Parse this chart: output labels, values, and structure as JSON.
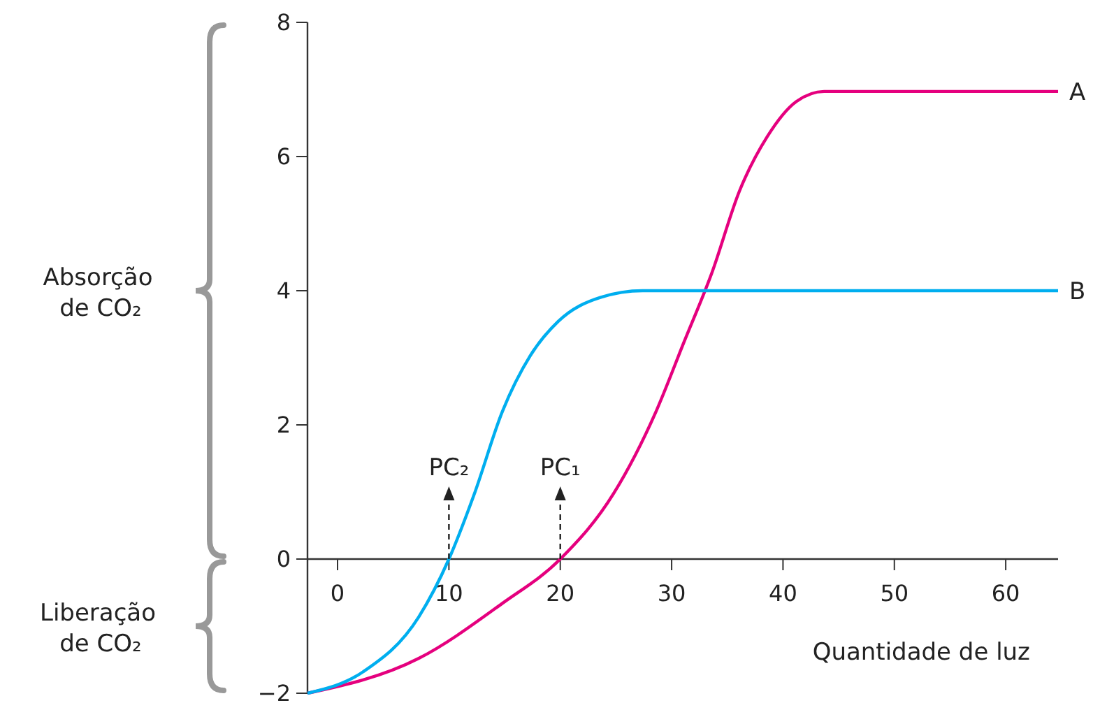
{
  "chart_data": {
    "type": "line",
    "xlabel": "Quantidade de luz",
    "xlim": [
      -2.7,
      64.7
    ],
    "ylim": [
      -2,
      8
    ],
    "xticks": [
      0,
      10,
      20,
      30,
      40,
      50,
      60
    ],
    "yticks": [
      {
        "value": -2,
        "label": "−2"
      },
      0,
      2,
      4,
      6,
      8
    ],
    "grid": false,
    "marker": "none",
    "line_style": "solid",
    "series": [
      {
        "name": "A",
        "color": "#e5007e",
        "x": [
          -2.7,
          7.3,
          14.8,
          20,
          24.8,
          28.6,
          31.1,
          33.6,
          36.1,
          38.6,
          41.2,
          43.7,
          64.7
        ],
        "values": [
          -2,
          -1.48,
          -0.66,
          0,
          0.98,
          2.2,
          3.23,
          4.26,
          5.49,
          6.3,
          6.82,
          6.97,
          6.97
        ]
      },
      {
        "name": "B",
        "color": "#00aeef",
        "x": [
          -2.7,
          2.3,
          7.3,
          10,
          12.3,
          14.8,
          17.3,
          19.8,
          23.6,
          27.4,
          32.4,
          64.7
        ],
        "values": [
          -2,
          -1.68,
          -0.86,
          0,
          0.98,
          2.2,
          3.03,
          3.54,
          3.9,
          4,
          4,
          4
        ]
      }
    ],
    "annotations": [
      "Absorção de CO₂",
      "Liberação de CO₂",
      {
        "text": "PC₂",
        "x": 10,
        "y": 0
      },
      {
        "text": "PC₁",
        "x": 20,
        "y": 0
      }
    ]
  }
}
